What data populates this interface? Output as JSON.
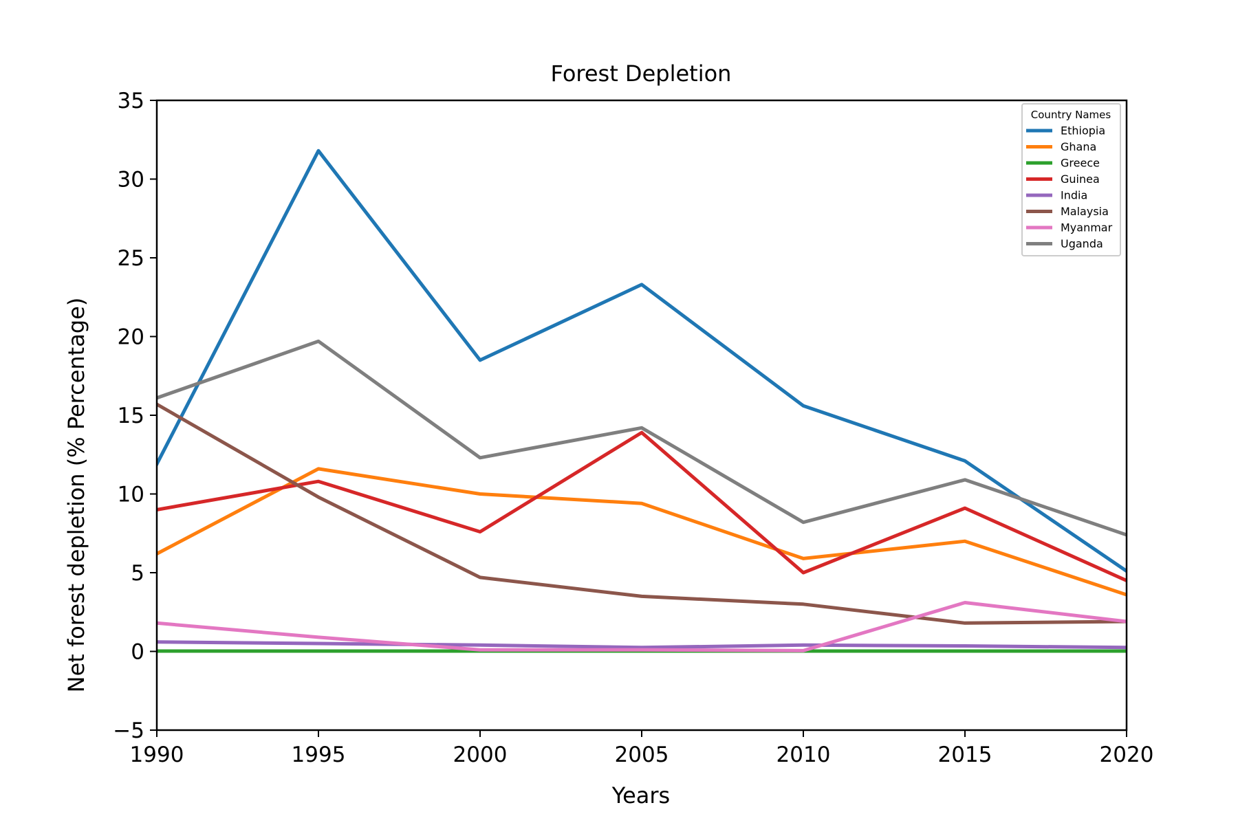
{
  "chart_data": {
    "type": "line",
    "title": "Forest Depletion",
    "xlabel": "Years",
    "ylabel": "Net forest depletion (% Percentage)",
    "x": [
      1990,
      1995,
      2000,
      2005,
      2010,
      2015,
      2020
    ],
    "xlim": [
      1990,
      2020
    ],
    "ylim": [
      -5,
      35
    ],
    "xticks": [
      1990,
      1995,
      2000,
      2005,
      2010,
      2015,
      2020
    ],
    "yticks": [
      -5,
      0,
      5,
      10,
      15,
      20,
      25,
      30,
      35
    ],
    "xtick_labels": [
      "1990",
      "1995",
      "2000",
      "2005",
      "2010",
      "2015",
      "2020"
    ],
    "ytick_labels": [
      "−5",
      "0",
      "5",
      "10",
      "15",
      "20",
      "25",
      "30",
      "35"
    ],
    "grid": false,
    "legend": {
      "title": "Country Names",
      "placement": "top-right"
    },
    "series": [
      {
        "name": "Ethiopia",
        "color": "#1f77b4",
        "values": [
          11.9,
          31.8,
          18.5,
          23.3,
          15.6,
          12.1,
          5.1
        ]
      },
      {
        "name": "Ghana",
        "color": "#ff7f0e",
        "values": [
          6.2,
          11.6,
          10.0,
          9.4,
          5.9,
          7.0,
          3.6
        ]
      },
      {
        "name": "Greece",
        "color": "#2ca02c",
        "values": [
          0.02,
          0.02,
          0.02,
          0.02,
          0.02,
          0.02,
          0.02
        ]
      },
      {
        "name": "Guinea",
        "color": "#d62728",
        "values": [
          9.0,
          10.8,
          7.6,
          13.9,
          5.0,
          9.1,
          4.5
        ]
      },
      {
        "name": "India",
        "color": "#9467bd",
        "values": [
          0.6,
          0.5,
          0.4,
          0.25,
          0.4,
          0.35,
          0.25
        ]
      },
      {
        "name": "Malaysia",
        "color": "#8c564b",
        "values": [
          15.7,
          9.8,
          4.7,
          3.5,
          3.0,
          1.8,
          1.9
        ]
      },
      {
        "name": "Myanmar",
        "color": "#e377c2",
        "values": [
          1.8,
          0.9,
          0.1,
          0.1,
          0.05,
          3.1,
          1.9
        ]
      },
      {
        "name": "Uganda",
        "color": "#7f7f7f",
        "values": [
          16.1,
          19.7,
          12.3,
          14.2,
          8.2,
          10.9,
          7.4
        ]
      }
    ]
  }
}
